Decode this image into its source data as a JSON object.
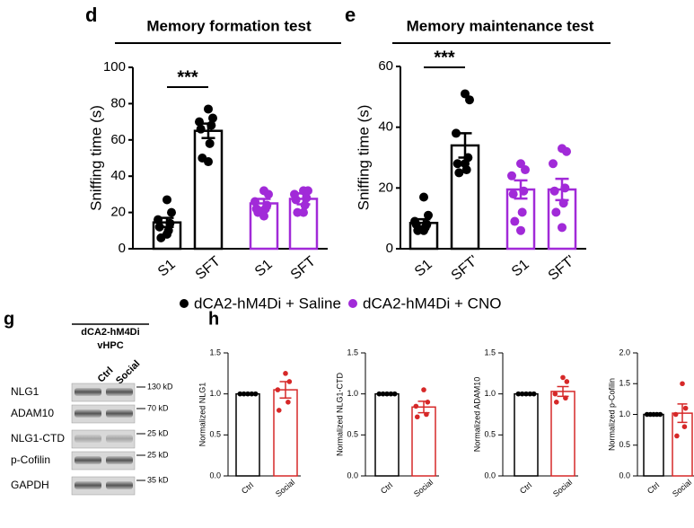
{
  "panel_labels": [
    "d",
    "e",
    "g",
    "h"
  ],
  "legend": [
    {
      "label": "dCA2-hM4Di + Saline",
      "color": "#000000"
    },
    {
      "label": "dCA2-hM4Di + CNO",
      "color": "#a12ad8"
    }
  ],
  "blot": {
    "title": [
      "dCA2-hM4Di",
      "vHPC"
    ],
    "lanes": [
      "Ctrl",
      "Social"
    ],
    "rows": [
      {
        "name": "NLG1",
        "size": "130 kD"
      },
      {
        "name": "ADAM10",
        "size": "70 kD"
      },
      {
        "name": "NLG1-CTD",
        "size": "25 kD"
      },
      {
        "name": "p-Cofilin",
        "size": "25 kD"
      },
      {
        "name": "GAPDH",
        "size": "35 kD"
      }
    ]
  },
  "chart_data": [
    {
      "type": "bar",
      "title": "Memory formation test",
      "ylabel": "Sniffing time (s)",
      "annotation": "***",
      "categories": [
        "S1",
        "SFT",
        "S1",
        "SFT"
      ],
      "colors": [
        "#000000",
        "#000000",
        "#a12ad8",
        "#a12ad8"
      ],
      "values": [
        14.5,
        65,
        25,
        27.5
      ],
      "errors": [
        2.5,
        4,
        2.5,
        3
      ],
      "points": [
        [
          27,
          20,
          16,
          14,
          12,
          10,
          6,
          8
        ],
        [
          77,
          72,
          70,
          68,
          66,
          58,
          50,
          48
        ],
        [
          32,
          30,
          26,
          24,
          22,
          22,
          20,
          18
        ],
        [
          32,
          32,
          30,
          28,
          27,
          24,
          20,
          20
        ]
      ],
      "ylim": [
        0,
        100
      ],
      "yticks": [
        0,
        20,
        40,
        60,
        80,
        100
      ]
    },
    {
      "type": "bar",
      "title": "Memory maintenance test",
      "ylabel": "Sniffing time (s)",
      "annotation": "***",
      "categories": [
        "S1",
        "SFT'",
        "S1",
        "SFT'"
      ],
      "colors": [
        "#000000",
        "#000000",
        "#a12ad8",
        "#a12ad8"
      ],
      "values": [
        8.5,
        34,
        19.5,
        19.5
      ],
      "errors": [
        1.2,
        4,
        3,
        3.5
      ],
      "points": [
        [
          17,
          11,
          9,
          8,
          8,
          7,
          6,
          6
        ],
        [
          51,
          49,
          38,
          30,
          28,
          26,
          25,
          28
        ],
        [
          28,
          26,
          24,
          19,
          18,
          12,
          9,
          6
        ],
        [
          33,
          32,
          28,
          20,
          19,
          15,
          12,
          7
        ]
      ],
      "ylim": [
        0,
        60
      ],
      "yticks": [
        0,
        20,
        40,
        60
      ]
    },
    {
      "type": "bar",
      "ylabel": "Normalized NLG1",
      "categories": [
        "Ctrl",
        "Social"
      ],
      "colors": [
        "#000000",
        "#d62828"
      ],
      "values": [
        1.0,
        1.05
      ],
      "errors": [
        0,
        0.1
      ],
      "points": [
        [
          1,
          1,
          1,
          1,
          1
        ],
        [
          1.25,
          1.15,
          1.05,
          0.9,
          0.8
        ]
      ],
      "ylim": [
        0,
        1.5
      ],
      "yticks": [
        {
          "value": 0,
          "label": "0.0"
        },
        {
          "value": 0.5,
          "label": "0.5"
        },
        {
          "value": 1,
          "label": "1.0"
        },
        {
          "value": 1.5,
          "label": "1.5"
        }
      ]
    },
    {
      "type": "bar",
      "ylabel": "Normalized NLG1-CTD",
      "categories": [
        "Ctrl",
        "Social"
      ],
      "colors": [
        "#000000",
        "#d62828"
      ],
      "values": [
        1.0,
        0.84
      ],
      "errors": [
        0,
        0.07
      ],
      "points": [
        [
          1,
          1,
          1,
          1,
          1
        ],
        [
          1.05,
          0.9,
          0.85,
          0.75,
          0.72
        ]
      ],
      "ylim": [
        0,
        1.5
      ],
      "yticks": [
        {
          "value": 0,
          "label": "0.0"
        },
        {
          "value": 0.5,
          "label": "0.5"
        },
        {
          "value": 1,
          "label": "1.0"
        },
        {
          "value": 1.5,
          "label": "1.5"
        }
      ]
    },
    {
      "type": "bar",
      "ylabel": "Normalized ADAM10",
      "categories": [
        "Ctrl",
        "Social"
      ],
      "colors": [
        "#000000",
        "#d62828"
      ],
      "values": [
        1.0,
        1.03
      ],
      "errors": [
        0,
        0.06
      ],
      "points": [
        [
          1,
          1,
          1,
          1,
          1
        ],
        [
          1.2,
          1.15,
          1.0,
          0.95,
          0.9
        ]
      ],
      "ylim": [
        0,
        1.5
      ],
      "yticks": [
        {
          "value": 0,
          "label": "0.0"
        },
        {
          "value": 0.5,
          "label": "0.5"
        },
        {
          "value": 1,
          "label": "1.0"
        },
        {
          "value": 1.5,
          "label": "1.5"
        }
      ]
    },
    {
      "type": "bar",
      "ylabel": "Normalized p-Cofilin",
      "categories": [
        "Ctrl",
        "Social"
      ],
      "colors": [
        "#000000",
        "#d62828"
      ],
      "values": [
        1.0,
        1.02
      ],
      "errors": [
        0,
        0.15
      ],
      "points": [
        [
          1,
          1,
          1,
          1,
          1
        ],
        [
          1.5,
          1.1,
          1.0,
          0.8,
          0.65
        ]
      ],
      "ylim": [
        0,
        2
      ],
      "yticks": [
        {
          "value": 0,
          "label": "0.0"
        },
        {
          "value": 0.5,
          "label": "0.5"
        },
        {
          "value": 1,
          "label": "1.0"
        },
        {
          "value": 1.5,
          "label": "1.5"
        },
        {
          "value": 2,
          "label": "2.0"
        }
      ]
    }
  ]
}
